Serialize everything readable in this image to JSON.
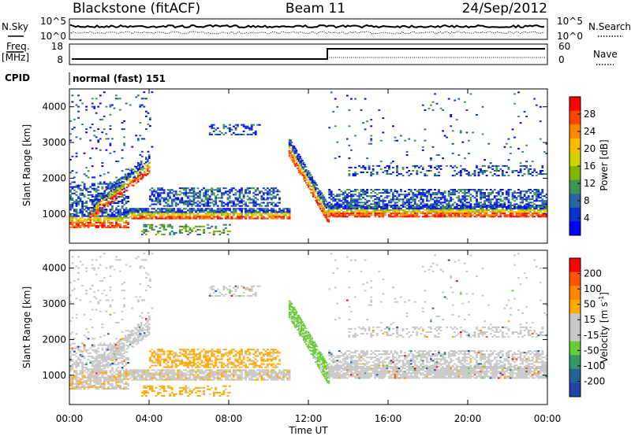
{
  "header": {
    "station": "Blackstone (fitACF)",
    "beam": "Beam 11",
    "date": "24/Sep/2012"
  },
  "top_panels": {
    "nsky_label": "N.Sky",
    "nsky_ticks": [
      "10^5",
      "10^0"
    ],
    "nsearch_label": "N.Search",
    "freq_label_1": "Freq.",
    "freq_label_2": "[MHz]",
    "freq_ticks": [
      "18",
      "8"
    ],
    "nave_ticks": [
      "60",
      "0"
    ],
    "nave_label": "Nave",
    "cpid_label": "CPID",
    "cpid_text": "normal (fast) 151"
  },
  "chart_data": [
    {
      "type": "heatmap",
      "quantity": "Power",
      "ylabel": "Slant Range [km]",
      "ylim": [
        180,
        4500
      ],
      "yticks": [
        "1000",
        "2000",
        "3000",
        "4000"
      ],
      "colorbar_label": "Power [dB]",
      "colorbar_ticks": [
        "28",
        "24",
        "20",
        "16",
        "12",
        "8",
        "4"
      ],
      "colors": [
        "#ff0000",
        "#ff4400",
        "#ff8800",
        "#ffbb00",
        "#d2d200",
        "#84b400",
        "#3c9650",
        "#2864a0",
        "#0a32c8",
        "#0000ff"
      ]
    },
    {
      "type": "heatmap",
      "quantity": "Velocity",
      "ylabel": "Slant Range [km]",
      "ylim": [
        180,
        4500
      ],
      "yticks": [
        "1000",
        "2000",
        "3000",
        "4000"
      ],
      "colorbar_label": "Velocity [m s",
      "colorbar_label_sup": "-1",
      "colorbar_ticks": [
        "200",
        "100",
        "50",
        "15",
        "-15",
        "-50",
        "-100",
        "-200"
      ],
      "colors": [
        "#ff0000",
        "#ff5500",
        "#ff8800",
        "#ffaa00",
        "#c8c8c8",
        "#c8c8c8",
        "#66cc33",
        "#339966",
        "#226699",
        "#2244aa"
      ],
      "xlabel": "Time UT",
      "xticks": [
        "00:00",
        "04:00",
        "08:00",
        "12:00",
        "16:00",
        "20:00",
        "00:00"
      ]
    }
  ]
}
